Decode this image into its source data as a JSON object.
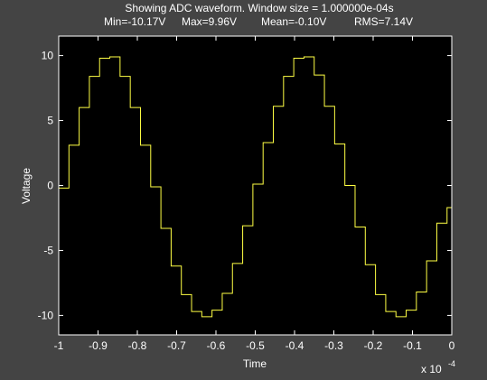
{
  "chart_data": {
    "type": "line",
    "title": "Showing ADC waveform.  Window size = 1.000000e-04s",
    "subtitle_parts": [
      "Min=-10.17V",
      "Max=9.96V",
      "Mean=-0.10V",
      "RMS=7.14V"
    ],
    "xlabel": "Time",
    "ylabel": "Voltage",
    "x_multiplier_label": "x 10",
    "x_multiplier_exponent": "-4",
    "xlim": [
      -1,
      0
    ],
    "ylim": [
      -11.5,
      11.5
    ],
    "xticks": [
      -1,
      -0.9,
      -0.8,
      -0.7,
      -0.6,
      -0.5,
      -0.4,
      -0.3,
      -0.2,
      -0.1,
      0
    ],
    "xtick_labels": [
      "-1",
      "-0.9",
      "-0.8",
      "-0.7",
      "-0.6",
      "-0.5",
      "-0.4",
      "-0.3",
      "-0.2",
      "-0.1",
      "0"
    ],
    "yticks": [
      10,
      5,
      0,
      -5,
      -10
    ],
    "ytick_labels": [
      "10",
      "5",
      "0",
      "-5",
      "-10"
    ],
    "grid": false,
    "colors": {
      "background": "#444444",
      "plot_area": "#000000",
      "axes": "#ffffff",
      "series": "#ffff44"
    },
    "series": [
      {
        "style": "step",
        "x": [
          -1.0,
          -0.974,
          -0.948,
          -0.922,
          -0.896,
          -0.87,
          -0.844,
          -0.818,
          -0.792,
          -0.766,
          -0.74,
          -0.714,
          -0.688,
          -0.662,
          -0.636,
          -0.61,
          -0.584,
          -0.558,
          -0.532,
          -0.506,
          -0.48,
          -0.454,
          -0.428,
          -0.402,
          -0.376,
          -0.35,
          -0.324,
          -0.298,
          -0.272,
          -0.246,
          -0.22,
          -0.194,
          -0.168,
          -0.142,
          -0.116,
          -0.09,
          -0.064,
          -0.038,
          -0.012,
          0.0
        ],
        "y": [
          -0.2,
          3.1,
          6.0,
          8.4,
          9.8,
          9.9,
          8.4,
          6.0,
          3.1,
          -0.1,
          -3.3,
          -6.2,
          -8.4,
          -9.7,
          -10.1,
          -9.6,
          -8.3,
          -6.0,
          -3.1,
          0.1,
          3.3,
          6.1,
          8.4,
          9.8,
          9.9,
          8.5,
          6.1,
          3.2,
          0.0,
          -3.2,
          -6.1,
          -8.4,
          -9.7,
          -10.1,
          -9.6,
          -8.2,
          -5.8,
          -2.9,
          -1.7,
          -1.7
        ]
      }
    ]
  }
}
